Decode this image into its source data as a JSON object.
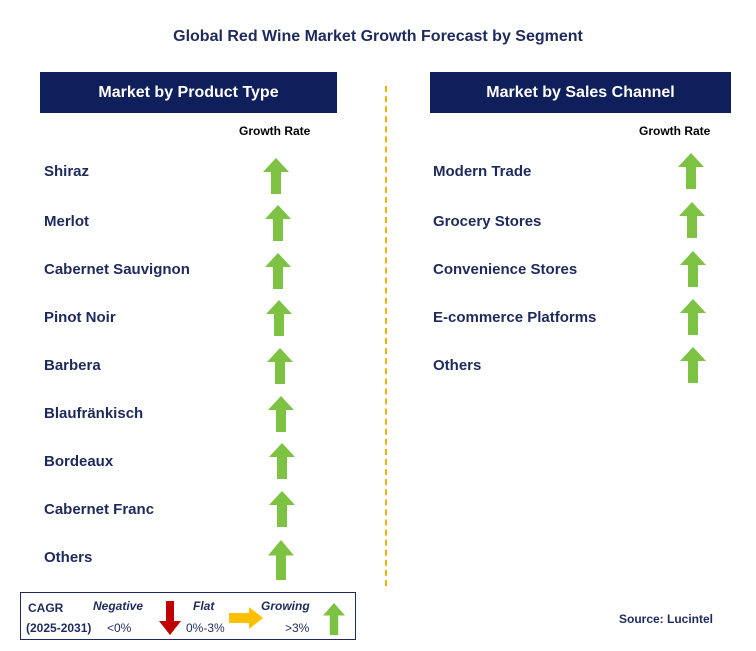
{
  "title": "Global Red Wine Market Growth Forecast by Segment",
  "product_type": {
    "header": "Market by Product Type",
    "growth_rate_label": "Growth Rate",
    "items": [
      {
        "label": "Shiraz",
        "trend": "growing"
      },
      {
        "label": "Merlot",
        "trend": "growing"
      },
      {
        "label": "Cabernet Sauvignon",
        "trend": "growing"
      },
      {
        "label": "Pinot Noir",
        "trend": "growing"
      },
      {
        "label": "Barbera",
        "trend": "growing"
      },
      {
        "label": "Blaufränkisch",
        "trend": "growing"
      },
      {
        "label": "Bordeaux",
        "trend": "growing"
      },
      {
        "label": "Cabernet Franc",
        "trend": "growing"
      },
      {
        "label": "Others",
        "trend": "growing"
      }
    ]
  },
  "sales_channel": {
    "header": "Market by Sales Channel",
    "growth_rate_label": "Growth Rate",
    "items": [
      {
        "label": "Modern Trade",
        "trend": "growing"
      },
      {
        "label": "Grocery Stores",
        "trend": "growing"
      },
      {
        "label": "Convenience Stores",
        "trend": "growing"
      },
      {
        "label": "E-commerce Platforms",
        "trend": "growing"
      },
      {
        "label": "Others",
        "trend": "growing"
      }
    ]
  },
  "legend": {
    "cagr_label": "CAGR",
    "period": "(2025-2031)",
    "negative_label": "Negative",
    "negative_range": "<0%",
    "flat_label": "Flat",
    "flat_range": "0%-3%",
    "growing_label": "Growing",
    "growing_range": ">3%"
  },
  "source": "Source: Lucintel",
  "colors": {
    "header_bg": "#0f1f5c",
    "text": "#1f2a5c",
    "growing": "#7dc243",
    "negative": "#c00000",
    "flat": "#ffc000",
    "divider": "#f0b400"
  }
}
